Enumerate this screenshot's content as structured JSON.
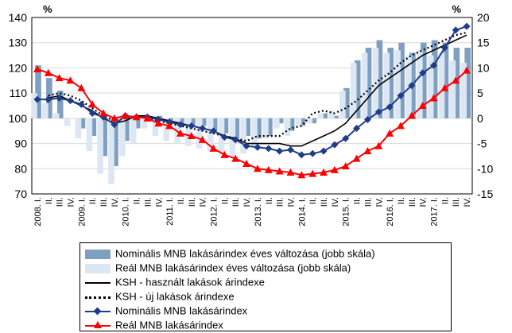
{
  "chart_data": {
    "type": "line",
    "left_axis": {
      "unit": "%",
      "ylim": [
        70,
        140
      ],
      "ticks": [
        70,
        80,
        90,
        100,
        110,
        120,
        130,
        140
      ]
    },
    "right_axis": {
      "unit": "%",
      "ylim": [
        -15,
        20
      ],
      "ticks": [
        -15,
        -10,
        -5,
        0,
        5,
        10,
        15,
        20
      ]
    },
    "categories": [
      "2008. I.",
      "II.",
      "III.",
      "IV.",
      "2009. I.",
      "II.",
      "III.",
      "IV.",
      "2010. I.",
      "II.",
      "III.",
      "IV.",
      "2011. I.",
      "II.",
      "III.",
      "IV.",
      "2012. I.",
      "II.",
      "III.",
      "IV.",
      "2013. I.",
      "II.",
      "III.",
      "IV.",
      "2014. I.",
      "II.",
      "III.",
      "IV.",
      "2015. I.",
      "II.",
      "III.",
      "IV.",
      "2016. I.",
      "II.",
      "III.",
      "IV.",
      "2017. I.",
      "II.",
      "III.",
      "IV."
    ],
    "grid": true,
    "legend_position": "bottom",
    "series": [
      {
        "name": "Nominális MNB lakásárindex éves változása (jobb skála)",
        "axis": "right",
        "kind": "bar",
        "color": "#7f9fc0",
        "values": [
          10.5,
          8,
          5.5,
          0,
          -2,
          -3.5,
          -7.5,
          -9.5,
          -4.5,
          -2,
          0.5,
          0.5,
          -0.5,
          -1.5,
          -1.5,
          -1.5,
          -2.5,
          -3,
          -4,
          -3.5,
          -4,
          -3.5,
          -1,
          -2.5,
          -1.5,
          -1,
          1,
          0.5,
          6,
          11.5,
          14,
          15.5,
          14,
          15,
          13,
          15,
          15.5,
          15,
          14,
          14
        ]
      },
      {
        "name": "Reál MNB lakásárindex éves változása (jobb skála)",
        "axis": "right",
        "kind": "bar",
        "color": "#dce7f3",
        "values": [
          5,
          3,
          1,
          -1.5,
          -4,
          -6.5,
          -11,
          -13,
          -7.5,
          -5,
          -2,
          -3.5,
          -4.5,
          -5,
          -5.5,
          -6,
          -6.5,
          -7,
          -7.5,
          -7,
          -5.5,
          -4,
          -2,
          -3.5,
          -1.5,
          -1,
          1,
          1.5,
          5.5,
          11,
          13,
          14,
          13,
          13.5,
          12.5,
          13.5,
          12.5,
          13,
          11.5,
          11
        ]
      },
      {
        "name": "KSH - használt lakások árindexe",
        "axis": "left",
        "kind": "line",
        "color": "#000000",
        "dash": "solid",
        "values": [
          null,
          108,
          109,
          107,
          105,
          103,
          100,
          98,
          99,
          101,
          101,
          100,
          99,
          98,
          97,
          96,
          95,
          93,
          92,
          90,
          90,
          90,
          90,
          89,
          89,
          91,
          93,
          95,
          98,
          103,
          108,
          113,
          116,
          119,
          122,
          125,
          127,
          129,
          131,
          133
        ]
      },
      {
        "name": "KSH - új lakások árindexe",
        "axis": "left",
        "kind": "line",
        "color": "#000000",
        "dash": "dotted",
        "values": [
          null,
          109,
          110,
          109,
          107,
          104,
          101,
          99,
          100,
          101,
          100,
          99,
          98,
          97,
          96,
          95,
          94,
          93,
          92,
          91,
          93,
          93,
          93,
          96,
          97,
          102,
          103,
          102,
          104,
          107,
          111,
          115,
          118,
          122,
          125,
          127,
          129,
          131,
          133,
          134
        ]
      },
      {
        "name": "Nominális MNB lakásárindex",
        "axis": "left",
        "kind": "line",
        "color": "#1f3c88",
        "marker": "diamond",
        "values": [
          107.5,
          107.5,
          108,
          107,
          105.5,
          102,
          100.5,
          97.5,
          101,
          100.5,
          100.5,
          99.5,
          98.5,
          97.5,
          97,
          96,
          95,
          92.5,
          91.5,
          89,
          88.5,
          88,
          87,
          87.5,
          85.5,
          86,
          87,
          89.5,
          92,
          96,
          99.5,
          102.5,
          104.5,
          109,
          113,
          118,
          121,
          128,
          135,
          136.5
        ]
      },
      {
        "name": "Reál MNB lakásárindex",
        "axis": "left",
        "kind": "line",
        "color": "#ff0000",
        "marker": "triangle",
        "values": [
          119.5,
          118,
          116,
          115,
          112,
          105.5,
          102,
          100,
          101,
          100.5,
          100,
          98,
          97,
          94,
          93,
          91.5,
          88,
          85.5,
          84,
          82,
          80,
          79.5,
          79,
          78.5,
          77.5,
          78,
          78.5,
          79.5,
          81,
          84,
          87,
          89,
          94,
          97,
          101,
          105,
          108,
          112,
          115,
          119
        ]
      }
    ]
  }
}
